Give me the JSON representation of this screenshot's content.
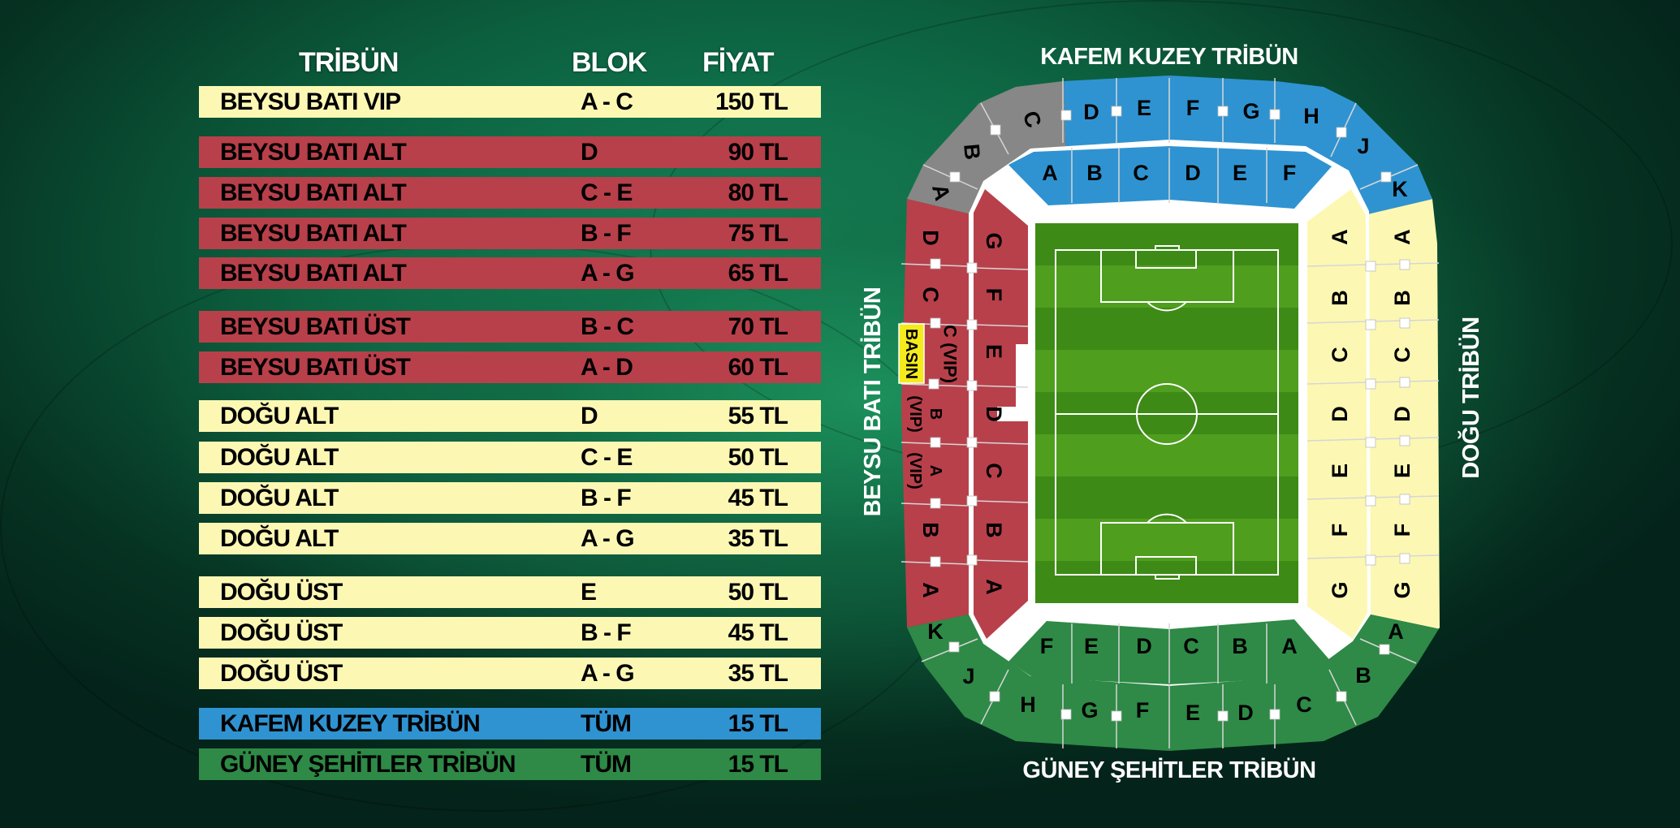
{
  "colors": {
    "yellow": "#fcf8b4",
    "red": "#b8404a",
    "blue": "#2f93d1",
    "green": "#2e8a46",
    "gray": "#878787",
    "press": "#f4ea1c",
    "pitch_dark": "#3e8a16",
    "pitch_light": "#4f9e1e"
  },
  "table": {
    "headers": {
      "tribun": "TRİBÜN",
      "blok": "BLOK",
      "fiyat": "FİYAT"
    },
    "rows": [
      {
        "tribun": "BEYSU BATI VIP",
        "blok": "A - C",
        "fiyat": "150 TL",
        "color": "yellow"
      },
      {
        "tribun": "BEYSU BATI ALT",
        "blok": "D",
        "fiyat": "90 TL",
        "color": "red"
      },
      {
        "tribun": "BEYSU BATI ALT",
        "blok": "C - E",
        "fiyat": "80 TL",
        "color": "red"
      },
      {
        "tribun": "BEYSU BATI ALT",
        "blok": "B - F",
        "fiyat": "75 TL",
        "color": "red"
      },
      {
        "tribun": "BEYSU BATI ALT",
        "blok": "A - G",
        "fiyat": "65 TL",
        "color": "red"
      },
      {
        "tribun": "BEYSU BATI ÜST",
        "blok": "B - C",
        "fiyat": "70 TL",
        "color": "red"
      },
      {
        "tribun": "BEYSU BATI ÜST",
        "blok": "A - D",
        "fiyat": "60 TL",
        "color": "red"
      },
      {
        "tribun": "DOĞU ALT",
        "blok": "D",
        "fiyat": "55 TL",
        "color": "yellow"
      },
      {
        "tribun": "DOĞU ALT",
        "blok": "C - E",
        "fiyat": "50 TL",
        "color": "yellow"
      },
      {
        "tribun": "DOĞU ALT",
        "blok": "B - F",
        "fiyat": "45 TL",
        "color": "yellow"
      },
      {
        "tribun": "DOĞU ALT",
        "blok": "A - G",
        "fiyat": "35 TL",
        "color": "yellow"
      },
      {
        "tribun": "DOĞU ÜST",
        "blok": "E",
        "fiyat": "50 TL",
        "color": "yellow"
      },
      {
        "tribun": "DOĞU ÜST",
        "blok": "B - F",
        "fiyat": "45 TL",
        "color": "yellow"
      },
      {
        "tribun": "DOĞU ÜST",
        "blok": "A - G",
        "fiyat": "35 TL",
        "color": "yellow"
      },
      {
        "tribun": "KAFEM KUZEY TRİBÜN",
        "blok": "TÜM",
        "fiyat": "15 TL",
        "color": "blue"
      },
      {
        "tribun": "GÜNEY ŞEHİTLER TRİBÜN",
        "blok": "TÜM",
        "fiyat": "15 TL",
        "color": "green"
      }
    ]
  },
  "stadium": {
    "titles": {
      "north": "KAFEM KUZEY TRİBÜN",
      "south": "GÜNEY ŞEHİTLER TRİBÜN",
      "west": "BEYSU BATI TRİBÜN",
      "east": "DOĞU TRİBÜN"
    },
    "press_label": "BASIN",
    "vip_suffix": "(VIP)",
    "sections": {
      "north_upper_gray": [
        "C",
        "B",
        "A"
      ],
      "north_upper": [
        "D",
        "E",
        "F",
        "G",
        "H",
        "J",
        "K"
      ],
      "north_lower": [
        "A",
        "B",
        "C",
        "D",
        "E",
        "F"
      ],
      "west_upper": [
        "D",
        "C",
        "C (VIP)",
        "B",
        "A",
        "B",
        "A"
      ],
      "west_lower": [
        "G",
        "F",
        "E",
        "D",
        "C",
        "B",
        "A"
      ],
      "east_lower": [
        "A",
        "B",
        "C",
        "D",
        "E",
        "F",
        "G"
      ],
      "east_upper": [
        "A",
        "B",
        "C",
        "D",
        "E",
        "F",
        "G"
      ],
      "south_lower": [
        "F",
        "E",
        "D",
        "C",
        "B",
        "A"
      ],
      "south_upper": [
        "K",
        "J",
        "H",
        "G",
        "F",
        "E",
        "D",
        "C",
        "B",
        "A"
      ]
    }
  }
}
